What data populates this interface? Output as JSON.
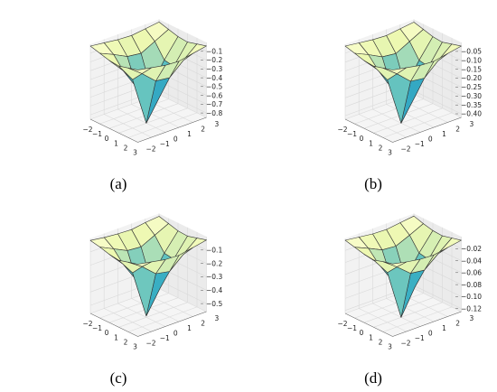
{
  "figure": {
    "panels": [
      {
        "caption": "(a)",
        "chart_data": {
          "type": "surface",
          "x": [
            -2,
            -1,
            0,
            1,
            2,
            3
          ],
          "y": [
            -2,
            -1,
            0,
            1,
            2,
            3
          ],
          "z": [
            [
              -0.02,
              -0.04,
              -0.06,
              -0.07,
              -0.05,
              -0.03
            ],
            [
              -0.05,
              -0.12,
              -0.2,
              -0.22,
              -0.14,
              -0.06
            ],
            [
              -0.08,
              -0.25,
              -0.5,
              -0.55,
              -0.3,
              -0.09
            ],
            [
              -0.09,
              -0.3,
              -0.85,
              -0.6,
              -0.32,
              -0.1
            ],
            [
              -0.06,
              -0.18,
              -0.32,
              -0.34,
              -0.2,
              -0.07
            ],
            [
              -0.03,
              -0.06,
              -0.09,
              -0.1,
              -0.07,
              -0.04
            ]
          ],
          "xticks": [
            "−2",
            "−1",
            "0",
            "1",
            "2",
            "3"
          ],
          "yticks": [
            "−2",
            "−1",
            "0",
            "1",
            "2",
            "3"
          ],
          "zticks": [
            "−0.1",
            "−0.2",
            "−0.3",
            "−0.4",
            "−0.5",
            "−0.6",
            "−0.7",
            "−0.8"
          ],
          "zlim": [
            -0.85,
            0
          ],
          "colormap": "YlGnBu",
          "grid": true
        }
      },
      {
        "caption": "(b)",
        "chart_data": {
          "type": "surface",
          "x": [
            -2,
            -1,
            0,
            1,
            2,
            3
          ],
          "y": [
            -2,
            -1,
            0,
            1,
            2,
            3
          ],
          "z": [
            [
              -0.01,
              -0.02,
              -0.03,
              -0.035,
              -0.025,
              -0.015
            ],
            [
              -0.025,
              -0.06,
              -0.1,
              -0.11,
              -0.07,
              -0.03
            ],
            [
              -0.04,
              -0.12,
              -0.25,
              -0.27,
              -0.15,
              -0.045
            ],
            [
              -0.045,
              -0.15,
              -0.42,
              -0.3,
              -0.16,
              -0.05
            ],
            [
              -0.03,
              -0.09,
              -0.16,
              -0.17,
              -0.1,
              -0.035
            ],
            [
              -0.015,
              -0.03,
              -0.045,
              -0.05,
              -0.035,
              -0.02
            ]
          ],
          "xticks": [
            "−2",
            "−1",
            "0",
            "1",
            "2",
            "3"
          ],
          "yticks": [
            "−2",
            "−1",
            "0",
            "1",
            "2",
            "3"
          ],
          "zticks": [
            "−0.05",
            "−0.10",
            "−0.15",
            "−0.20",
            "−0.25",
            "−0.30",
            "−0.35",
            "−0.40"
          ],
          "zlim": [
            -0.42,
            0
          ],
          "colormap": "YlGnBu",
          "grid": true
        }
      },
      {
        "caption": "(c)",
        "chart_data": {
          "type": "surface",
          "x": [
            -2,
            -1,
            0,
            1,
            2,
            3
          ],
          "y": [
            -2,
            -1,
            0,
            1,
            2,
            3
          ],
          "z": [
            [
              -0.015,
              -0.03,
              -0.04,
              -0.045,
              -0.03,
              -0.02
            ],
            [
              -0.03,
              -0.08,
              -0.13,
              -0.14,
              -0.09,
              -0.04
            ],
            [
              -0.05,
              -0.16,
              -0.32,
              -0.35,
              -0.19,
              -0.06
            ],
            [
              -0.06,
              -0.19,
              -0.55,
              -0.38,
              -0.2,
              -0.065
            ],
            [
              -0.04,
              -0.11,
              -0.2,
              -0.22,
              -0.13,
              -0.045
            ],
            [
              -0.02,
              -0.04,
              -0.06,
              -0.065,
              -0.045,
              -0.025
            ]
          ],
          "xticks": [
            "−2",
            "−1",
            "0",
            "1",
            "2",
            "3"
          ],
          "yticks": [
            "−2",
            "−1",
            "0",
            "1",
            "2",
            "3"
          ],
          "zticks": [
            "−0.1",
            "−0.2",
            "−0.3",
            "−0.4",
            "−0.5"
          ],
          "zlim": [
            -0.56,
            0
          ],
          "colormap": "YlGnBu",
          "grid": true
        }
      },
      {
        "caption": "(d)",
        "chart_data": {
          "type": "surface",
          "x": [
            -2,
            -1,
            0,
            1,
            2,
            3
          ],
          "y": [
            -2,
            -1,
            0,
            1,
            2,
            3
          ],
          "z": [
            [
              -0.003,
              -0.006,
              -0.009,
              -0.01,
              -0.007,
              -0.004
            ],
            [
              -0.007,
              -0.017,
              -0.028,
              -0.03,
              -0.02,
              -0.009
            ],
            [
              -0.011,
              -0.034,
              -0.07,
              -0.076,
              -0.042,
              -0.013
            ],
            [
              -0.013,
              -0.042,
              -0.125,
              -0.083,
              -0.045,
              -0.014
            ],
            [
              -0.008,
              -0.025,
              -0.044,
              -0.047,
              -0.028,
              -0.01
            ],
            [
              -0.004,
              -0.009,
              -0.013,
              -0.014,
              -0.01,
              -0.006
            ]
          ],
          "xticks": [
            "−2",
            "−1",
            "0",
            "1",
            "2",
            "3"
          ],
          "yticks": [
            "−2",
            "−1",
            "0",
            "1",
            "2",
            "3"
          ],
          "zticks": [
            "−0.02",
            "−0.04",
            "−0.06",
            "−0.08",
            "−0.10",
            "−0.12"
          ],
          "zlim": [
            -0.125,
            0
          ],
          "colormap": "YlGnBu",
          "grid": true
        }
      }
    ]
  }
}
